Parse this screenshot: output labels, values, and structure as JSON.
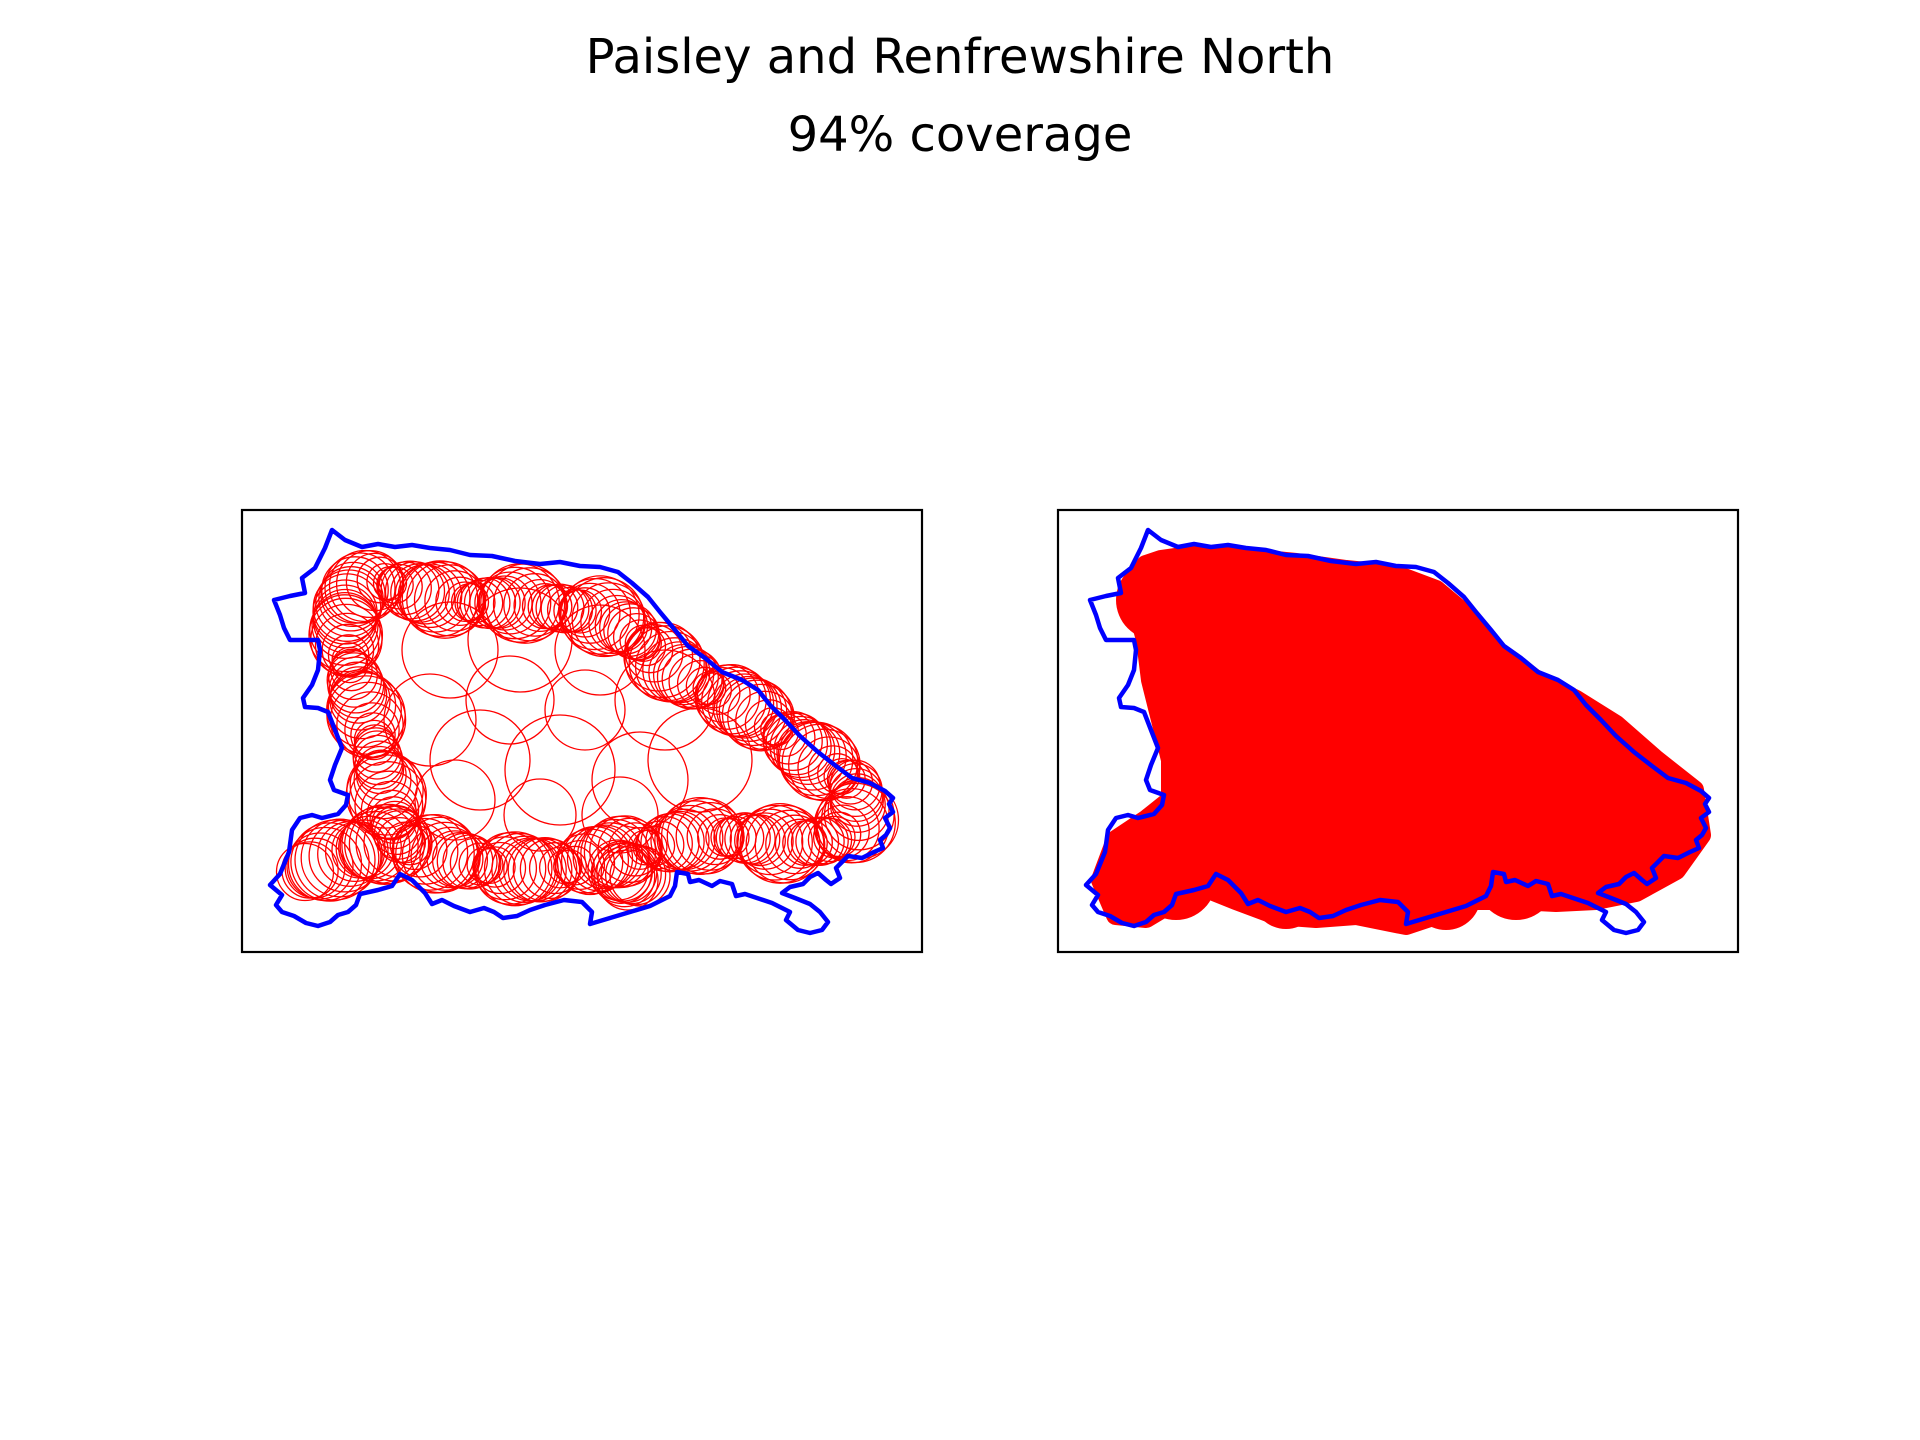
{
  "figure": {
    "title": "Paisley and Renfrewshire North",
    "subtitle": "94% coverage"
  },
  "colors": {
    "boundary": "#0000ff",
    "coverage": "#ff0000",
    "frame": "#000000",
    "background": "#ffffff"
  },
  "panels": [
    {
      "id": "coverage-circles",
      "style": "outlined-circles"
    },
    {
      "id": "coverage-union",
      "style": "filled-area"
    }
  ]
}
